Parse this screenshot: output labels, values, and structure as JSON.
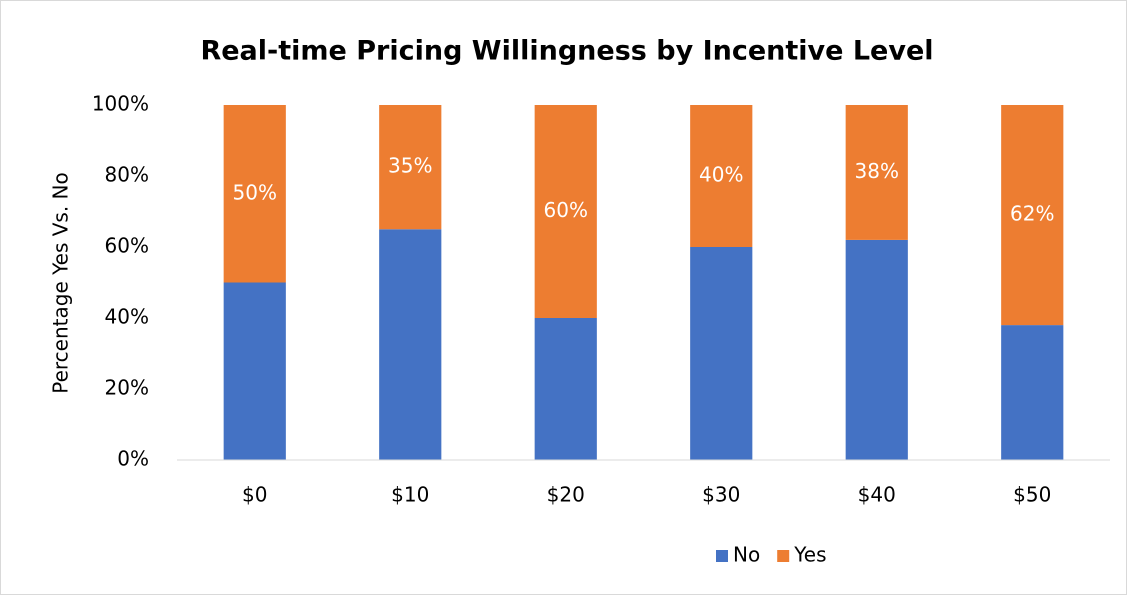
{
  "chart_data": {
    "type": "stacked_bar",
    "title": "Real-time Pricing Willingness by Incentive Level",
    "y_label": "Percentage Yes Vs. No",
    "categories": [
      "$0",
      "$10",
      "$20",
      "$30",
      "$40",
      "$50"
    ],
    "series": [
      {
        "name": "No",
        "color": "#4472c4",
        "values": [
          50,
          65,
          40,
          60,
          62,
          38
        ]
      },
      {
        "name": "Yes",
        "color": "#ed7d31",
        "values": [
          50,
          35,
          60,
          40,
          38,
          62
        ],
        "value_labels": [
          "50%",
          "35%",
          "60%",
          "40%",
          "38%",
          "62%"
        ]
      }
    ],
    "ylim": [
      0,
      100
    ],
    "yticks": [
      {
        "value": 0,
        "label": "0%"
      },
      {
        "value": 20,
        "label": "20%"
      },
      {
        "value": 40,
        "label": "40%"
      },
      {
        "value": 60,
        "label": "60%"
      },
      {
        "value": 80,
        "label": "80%"
      },
      {
        "value": 100,
        "label": "100%"
      }
    ],
    "grid": false,
    "legend": "bottom"
  }
}
